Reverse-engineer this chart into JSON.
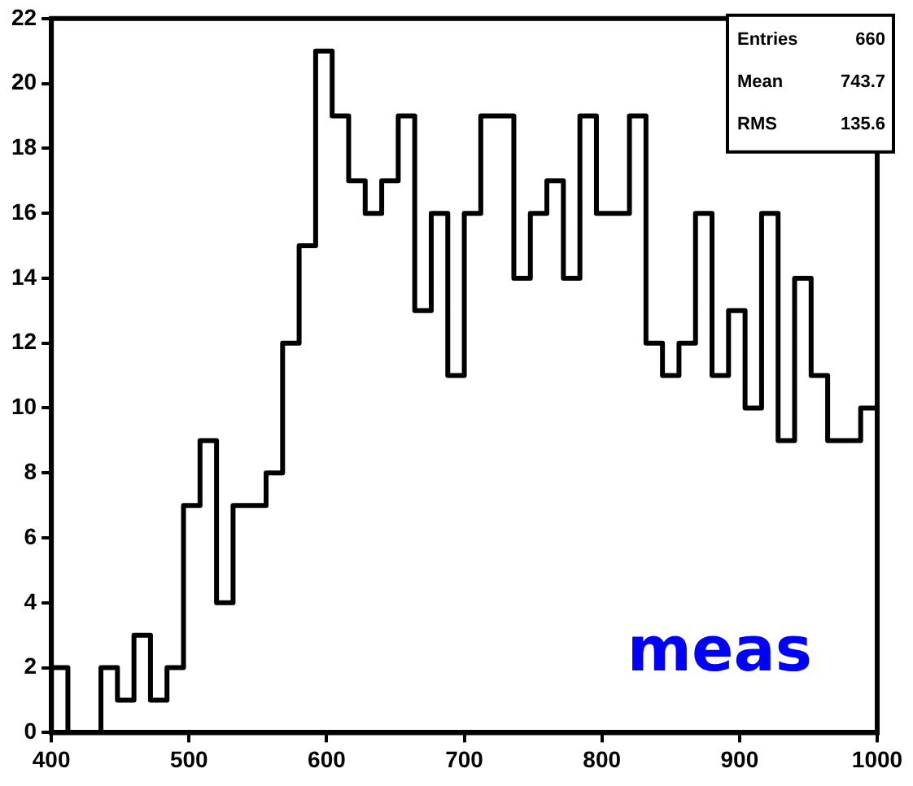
{
  "chart_data": {
    "type": "histogram",
    "bins": [
      400,
      412,
      424,
      436,
      448,
      460,
      472,
      484,
      496,
      508,
      520,
      532,
      544,
      556,
      568,
      580,
      592,
      604,
      616,
      628,
      640,
      652,
      664,
      676,
      688,
      700,
      712,
      724,
      736,
      748,
      760,
      772,
      784,
      796,
      808,
      820,
      832,
      844,
      856,
      868,
      880,
      892,
      904,
      916,
      928,
      940,
      952,
      964,
      976,
      988,
      1000
    ],
    "values": [
      2,
      0,
      0,
      2,
      1,
      3,
      1,
      2,
      7,
      9,
      4,
      7,
      7,
      8,
      12,
      15,
      21,
      19,
      17,
      16,
      17,
      19,
      13,
      16,
      11,
      16,
      19,
      19,
      14,
      16,
      17,
      14,
      19,
      16,
      16,
      19,
      12,
      11,
      12,
      16,
      11,
      13,
      10,
      16,
      9,
      14,
      11,
      9,
      9,
      10
    ],
    "color": "#000000",
    "xlim": [
      400,
      1000
    ],
    "xticks": [
      400,
      500,
      600,
      700,
      800,
      900,
      1000
    ],
    "ylim": [
      0,
      22
    ],
    "yticks": [
      0,
      2,
      4,
      6,
      8,
      10,
      12,
      14,
      16,
      18,
      20,
      22
    ],
    "grid": false,
    "legend": false,
    "annotations": [
      "Entries",
      "660",
      "Mean",
      "743.7",
      "RMS",
      "135.6",
      "meas"
    ]
  }
}
